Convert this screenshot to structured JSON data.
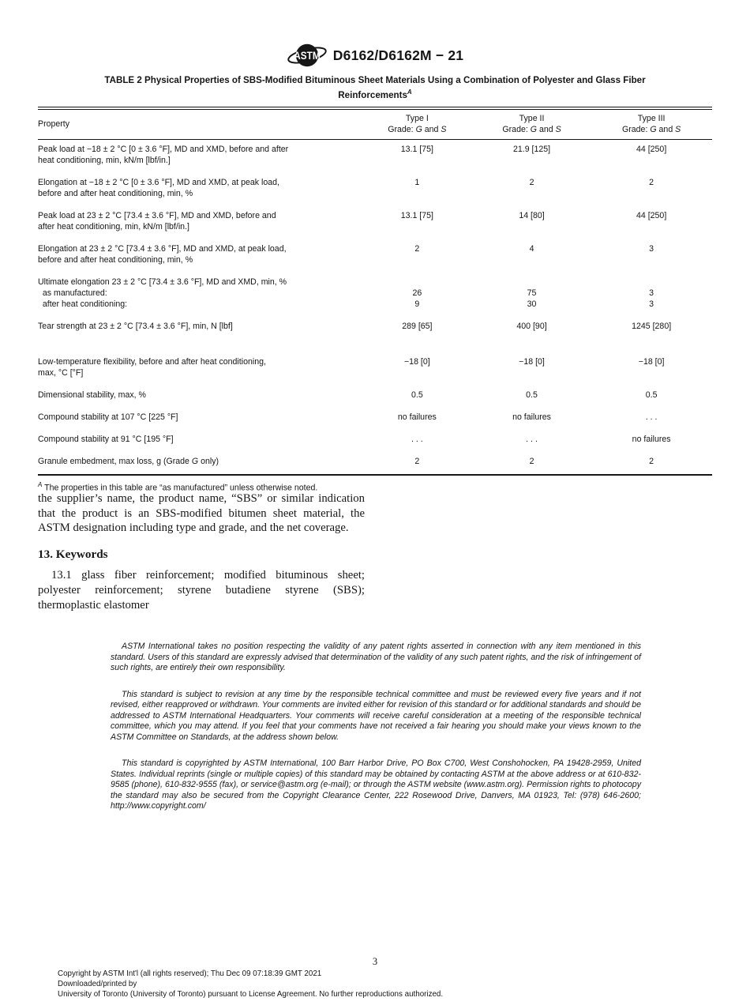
{
  "header": {
    "logo_text": "ASTM",
    "designation": "D6162/D6162M − 21"
  },
  "table": {
    "title_line1": "TABLE 2 Physical Properties of SBS-Modified Bituminous Sheet Materials Using a Combination of Polyester and Glass Fiber",
    "title_line2": "Reinforcements",
    "title_note_ref": "A",
    "property_header": "Property",
    "type_headers": [
      "Type I",
      "Type II",
      "Type III"
    ],
    "grade_label": "Grade: ",
    "grade_g": "G",
    "grade_and": " and ",
    "grade_s": "S",
    "rows": [
      {
        "property": [
          "Peak load at −18 ± 2 °C [0 ± 3.6 °F], MD and XMD, before and after",
          "heat conditioning, min, kN/m [lbf/in.]"
        ],
        "values": [
          [
            "13.1 [75]"
          ],
          [
            "21.9 [125]"
          ],
          [
            "44 [250]"
          ]
        ]
      },
      {
        "property": [
          "Elongation at −18 ± 2 °C [0 ± 3.6 °F], MD and XMD, at peak load,",
          "before and after heat conditioning, min, %"
        ],
        "values": [
          [
            "1"
          ],
          [
            "2"
          ],
          [
            "2"
          ]
        ]
      },
      {
        "property": [
          "Peak load at 23 ± 2 °C [73.4 ± 3.6 °F], MD and XMD, before and",
          "after heat conditioning, min, kN/m [lbf/in.]"
        ],
        "values": [
          [
            "13.1 [75]"
          ],
          [
            "14 [80]"
          ],
          [
            "44 [250]"
          ]
        ]
      },
      {
        "property": [
          "Elongation at 23 ± 2 °C [73.4 ± 3.6 °F], MD and XMD, at peak load,",
          "before and after heat conditioning, min, %"
        ],
        "values": [
          [
            "2"
          ],
          [
            "4"
          ],
          [
            "3"
          ]
        ]
      },
      {
        "property": [
          "Ultimate elongation 23 ± 2 °C [73.4 ± 3.6 °F], MD and XMD, min, %",
          "  as manufactured:",
          "  after heat conditioning:"
        ],
        "values": [
          [
            "",
            "26",
            "9"
          ],
          [
            "",
            "75",
            "30"
          ],
          [
            "",
            "3",
            "3"
          ]
        ]
      },
      {
        "property": [
          "Tear strength at 23 ± 2 °C [73.4 ± 3.6 °F], min, N [lbf]"
        ],
        "values": [
          [
            "289 [65]"
          ],
          [
            "400 [90]"
          ],
          [
            "1245 [280]"
          ]
        ]
      },
      {
        "property": [
          "Low-temperature flexibility, before and after heat conditioning,",
          "max, °C [°F]"
        ],
        "values": [
          [
            "−18 [0]"
          ],
          [
            "−18 [0]"
          ],
          [
            "−18 [0]"
          ]
        ]
      },
      {
        "property": [
          "Dimensional stability, max, %"
        ],
        "values": [
          [
            "0.5"
          ],
          [
            "0.5"
          ],
          [
            "0.5"
          ]
        ]
      },
      {
        "property": [
          "Compound stability at 107 °C [225 °F]"
        ],
        "values": [
          [
            "no failures"
          ],
          [
            "no failures"
          ],
          [
            ". . ."
          ]
        ]
      },
      {
        "property": [
          "Compound stability at 91 °C [195 °F]"
        ],
        "values": [
          [
            ". . ."
          ],
          [
            ". . ."
          ],
          [
            "no failures"
          ]
        ]
      },
      {
        "property": [
          [
            {
              "t": "Granule embedment, max loss, g (Grade "
            },
            {
              "t": "G",
              "i": true
            },
            {
              "t": " only)"
            }
          ]
        ],
        "values": [
          [
            "2"
          ],
          [
            "2"
          ],
          [
            "2"
          ]
        ]
      }
    ],
    "footnote_ref": "A",
    "footnote_text": " The properties in this table are “as manufactured” unless otherwise noted."
  },
  "body": {
    "paragraph": "the supplier’s name, the product name, “SBS” or similar indication that the product is an SBS-modified bitumen sheet material, the ASTM designation including type and grade, and the net coverage.",
    "keywords_heading": "13. Keywords",
    "keywords_text": "13.1 glass fiber reinforcement; modified bituminous sheet; polyester reinforcement; styrene butadiene styrene (SBS); thermoplastic elastomer"
  },
  "disclaimers": {
    "patent": "ASTM International takes no position respecting the validity of any patent rights asserted in connection with any item mentioned in this standard. Users of this standard are expressly advised that determination of the validity of any such patent rights, and the risk of infringement of such rights, are entirely their own responsibility.",
    "revision": "This standard is subject to revision at any time by the responsible technical committee and must be reviewed every five years and if not revised, either reapproved or withdrawn. Your comments are invited either for revision of this standard or for additional standards and should be addressed to ASTM International Headquarters. Your comments will receive careful consideration at a meeting of the responsible technical committee, which you may attend. If you feel that your comments have not received a fair hearing you should make your views known to the ASTM Committee on Standards, at the address shown below.",
    "copyright": "This standard is copyrighted by ASTM International, 100 Barr Harbor Drive, PO Box C700, West Conshohocken, PA 19428-2959, United States. Individual reprints (single or multiple copies) of this standard may be obtained by contacting ASTM at the above address or at 610-832-9585 (phone), 610-832-9555 (fax), or service@astm.org (e-mail); or through the ASTM website (www.astm.org). Permission rights to photocopy the standard may also be secured from the Copyright Clearance Center, 222 Rosewood Drive, Danvers, MA 01923, Tel: (978) 646-2600; http://www.copyright.com/"
  },
  "footer": {
    "page_number": "3",
    "copyright_line1": "Copyright by ASTM Int'l (all rights reserved); Thu Dec 09 07:18:39 GMT 2021",
    "copyright_line2": "Downloaded/printed by",
    "copyright_line3": "University of Toronto (University of Toronto) pursuant to License Agreement. No further reproductions authorized."
  }
}
